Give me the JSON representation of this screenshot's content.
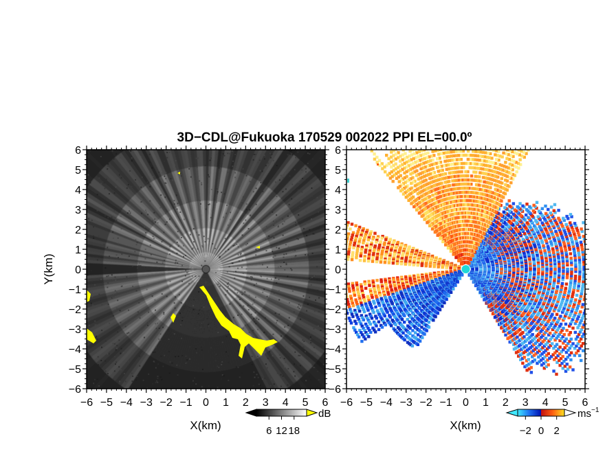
{
  "chart_data": [
    {
      "type": "heatmap",
      "title": "3D−CDL@Fukuoka 170529 002022 PPI EL=00.0º",
      "xlabel": "X(km)",
      "ylabel": "Y(km)",
      "xlim": [
        -6,
        6
      ],
      "ylim": [
        -6,
        6
      ],
      "x_ticks": [
        "−6",
        "−5",
        "−4",
        "−3",
        "−2",
        "−1",
        "0",
        "1",
        "2",
        "3",
        "4",
        "5",
        "6"
      ],
      "y_ticks": [
        "−6",
        "−5",
        "−4",
        "−3",
        "−2",
        "−1",
        "0",
        "1",
        "2",
        "3",
        "4",
        "5",
        "6"
      ],
      "colorbar": {
        "unit": "dB",
        "ticks": [
          "6",
          "12",
          "18"
        ],
        "tick_values": [
          6,
          12,
          18
        ],
        "range": [
          0,
          24
        ]
      },
      "colors": {
        "low": "#1a1a1a",
        "high": "#ffffff",
        "overflow": "#ffff00"
      }
    },
    {
      "type": "heatmap",
      "xlabel": "X(km)",
      "xlim": [
        -6,
        6
      ],
      "ylim": [
        -6,
        6
      ],
      "x_ticks": [
        "−6",
        "−5",
        "−4",
        "−3",
        "−2",
        "−1",
        "0",
        "1",
        "2",
        "3",
        "4",
        "5",
        "6"
      ],
      "y_ticks": [
        "−6",
        "−5",
        "−4",
        "−3",
        "−2",
        "−1",
        "0",
        "1",
        "2",
        "3",
        "4",
        "5",
        "6"
      ],
      "colorbar": {
        "unit": "ms",
        "unit_sup": "−1",
        "ticks": [
          "−2",
          "0",
          "2"
        ],
        "tick_values": [
          -2,
          0,
          2
        ],
        "range": [
          -3,
          3
        ]
      },
      "colors": {
        "neg_far": "#1040e0",
        "neg_near": "#40c8f0",
        "pos_near": "#ff9f20",
        "pos_far": "#e83010",
        "center": "#20d8d8"
      }
    }
  ]
}
